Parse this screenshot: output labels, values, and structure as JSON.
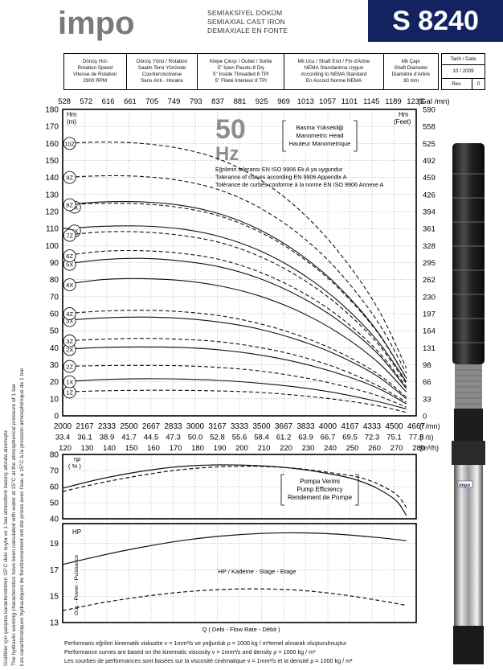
{
  "header": {
    "brand": "impo",
    "subtitle_lines": [
      "SEMİAKSİYEL DÖKÜM",
      "SEMIAXIAL CAST IRON",
      "DEMIAXIALE EN FONTE"
    ],
    "model": "S 8240",
    "brand_color": "#13235f"
  },
  "spec_table": [
    {
      "lines": [
        "Dönüş Hızı",
        "Rotation Speed",
        "Vitesse de Rotation",
        "2900 RPM"
      ]
    },
    {
      "lines": [
        "Dönüş Yönü / Rotation",
        "Saatin Tersi Yönünde",
        "Counterclockwise",
        "Sens Anti - Horaire"
      ]
    },
    {
      "lines": [
        "Klepe Çıkışı / Outlet / Sortie",
        "5\" İçten Pasolu   8 Diş",
        "5\" Inside Threaded   8 TPI",
        "5\" Fileté Interieur   8 TPI"
      ]
    },
    {
      "lines": [
        "Mil Ucu / Shaft End / Fin d'Arbre",
        "NEMA Standardına Uygun",
        "According to NEMA Standard",
        "En Accord Norme NEMA"
      ]
    },
    {
      "lines": [
        "Mil Çapı",
        "Shaft Diameter",
        "Diamètre d'Arbre",
        "30 mm"
      ]
    }
  ],
  "date_box": {
    "label": "Tarih / Date",
    "date": "10 / 2009",
    "rev_label": "Rev.",
    "rev": "0"
  },
  "side_notes": [
    "Grafikler için çalışma karakteristikleri 15°C deki suyla ve 1 bar atmosferik basınç altında alınmıştır",
    "The hydraulic working characteristics have been calculated with water at 15°C at the atmospherical pressure of 1 bar",
    "Les caractéristiques hydrauliques de fonctionnement ont été prises avec l'eau a 15°C à la pression atmosphérique de 1 bar"
  ],
  "footer": [
    "Performans eğrileri kinematik viskozite ν = 1mm²/s ve yoğunluk ρ = 1000 kg / m³temel alınarak oluşturulmuştur",
    "Performance curves are based on the kinematic viscosity ν = 1mm²/s and density ρ = 1000 kg / m³",
    "Les courbes de performances sont basées sur la viscosité cinématique ν = 1mm²/s et la densité ρ = 1000 kg / m³"
  ],
  "chart_data": [
    {
      "type": "line",
      "id": "head",
      "big_label": "50",
      "big_label_unit": "Hz",
      "title_lines": [
        "Basma Yüksekliği",
        "Manometric Head",
        "Hauteur Manometrique"
      ],
      "tolerance_lines": [
        "Eğrilerin toleransı EN ISO 9906 Ek A ya uygundur",
        "Tolerance of curves according EN 9906 Appendix A",
        "Tolérance de curbes conforme à la norme EN ISO 9906 Annexe A"
      ],
      "ylabel_left": [
        "Hm",
        "(m)"
      ],
      "ylabel_right": [
        "Hm",
        "(Feet)"
      ],
      "y_ticks": [
        0,
        10,
        20,
        30,
        40,
        50,
        60,
        70,
        80,
        90,
        100,
        110,
        120,
        130,
        140,
        150,
        160,
        170,
        180
      ],
      "y_right_ticks": [
        "0",
        "33",
        "66",
        "98",
        "131",
        "164",
        "197",
        "230",
        "262",
        "295",
        "328",
        "361",
        "394",
        "426",
        "459",
        "492",
        "525",
        "558",
        "590"
      ],
      "x_top_ticks": [
        "528",
        "572",
        "616",
        "661",
        "705",
        "749",
        "793",
        "837",
        "881",
        "925",
        "969",
        "1013",
        "1057",
        "1101",
        "1145",
        "1189",
        "1233"
      ],
      "x_top_unit": "(Gal /mn)",
      "xlim": [
        120,
        300
      ],
      "ylim": [
        0,
        180
      ],
      "x": [
        120,
        140,
        160,
        180,
        200,
        220,
        240,
        260,
        280,
        295
      ],
      "series": [
        {
          "name": "1Z",
          "style": "dashed",
          "values": [
            14,
            14.7,
            15,
            15,
            14.6,
            13.8,
            12,
            9.5,
            6,
            2
          ]
        },
        {
          "name": "1X",
          "style": "solid",
          "values": [
            20,
            21.3,
            21.8,
            21.6,
            20.8,
            19.2,
            16.8,
            13.3,
            8.5,
            4
          ]
        },
        {
          "name": "2Z",
          "style": "dashed",
          "values": [
            29,
            29.5,
            29.6,
            29.4,
            28.4,
            26.4,
            23,
            18.3,
            12,
            5
          ]
        },
        {
          "name": "2X",
          "style": "solid",
          "values": [
            39,
            40.2,
            40.5,
            40.2,
            38.7,
            35.8,
            31.3,
            25,
            16.5,
            7
          ]
        },
        {
          "name": "3Z",
          "style": "dashed",
          "values": [
            44,
            45,
            45.5,
            45,
            43.5,
            40.2,
            35.2,
            28,
            18,
            8
          ]
        },
        {
          "name": "3X",
          "style": "solid",
          "values": [
            56,
            57.5,
            58,
            57.3,
            55,
            51,
            44.5,
            35.6,
            23.5,
            10
          ]
        },
        {
          "name": "4Z",
          "style": "dashed",
          "values": [
            60,
            61.5,
            62,
            61.2,
            58.8,
            54.2,
            47.3,
            37.8,
            25,
            11
          ]
        },
        {
          "name": "4X",
          "style": "solid",
          "values": [
            77,
            80,
            80.6,
            79.5,
            76.3,
            70.5,
            61.5,
            49,
            32,
            14
          ]
        },
        {
          "name": "5X",
          "style": "solid",
          "values": [
            89,
            91.7,
            92.5,
            91,
            87.5,
            80.8,
            70.5,
            56.3,
            37,
            16
          ]
        },
        {
          "name": "6Z",
          "style": "dashed",
          "values": [
            94,
            96.6,
            97,
            95.5,
            91.8,
            84.6,
            73.8,
            59,
            38.5,
            17
          ]
        },
        {
          "name": "6X",
          "style": "solid",
          "values": [
            110,
            111.3,
            111.5,
            109.8,
            105.3,
            97.2,
            84.8,
            67.7,
            44.5,
            20
          ]
        },
        {
          "name": "7Z",
          "style": "dashed",
          "values": [
            106,
            108,
            108,
            106,
            101.8,
            93.8,
            81.8,
            65.3,
            43,
            19
          ]
        },
        {
          "name": "7X",
          "style": "solid",
          "values": [
            124,
            125.6,
            125.7,
            123.7,
            118.6,
            109.5,
            95.6,
            76.5,
            50,
            22
          ]
        },
        {
          "name": "8Z",
          "style": "dashed",
          "values": [
            124,
            124.8,
            124.5,
            122.3,
            117.3,
            108.2,
            94.5,
            75.5,
            49.5,
            22
          ]
        },
        {
          "name": "9Z",
          "style": "dashed",
          "values": [
            140,
            141,
            140.6,
            138.2,
            132.6,
            122.4,
            107,
            85.5,
            56,
            25
          ]
        },
        {
          "name": "10Z",
          "style": "dashed",
          "values": [
            160,
            160.8,
            160,
            157,
            150.6,
            139,
            121.5,
            97,
            64,
            28
          ]
        }
      ],
      "x_axis_rows": [
        {
          "unit": "(l /mn)",
          "ticks": [
            "2000",
            "2167",
            "2333",
            "2500",
            "2667",
            "2833",
            "3000",
            "3167",
            "3333",
            "3500",
            "3667",
            "3833",
            "4000",
            "4167",
            "4333",
            "4500",
            "4667"
          ]
        },
        {
          "unit": "(l /s)",
          "ticks": [
            "33.4",
            "36.1",
            "38.9",
            "41.7",
            "44.5",
            "47.3",
            "50.0",
            "52.8",
            "55.6",
            "58.4",
            "61.2",
            "63.9",
            "66.7",
            "69.5",
            "72.3",
            "75.1",
            "77.8"
          ]
        },
        {
          "unit": "(m³/h)",
          "ticks": [
            "120",
            "130",
            "140",
            "150",
            "160",
            "170",
            "180",
            "190",
            "200",
            "210",
            "220",
            "230",
            "240",
            "250",
            "260",
            "270",
            "280"
          ]
        }
      ]
    },
    {
      "type": "line",
      "id": "efficiency",
      "ylabel": [
        "ηp",
        "( % )"
      ],
      "title_lines": [
        "Pompa Verimi",
        "Pump Efficiency",
        "Rendement de Pompe"
      ],
      "y_ticks": [
        40,
        50,
        60,
        70,
        80
      ],
      "ylim": [
        40,
        80
      ],
      "xlim": [
        120,
        300
      ],
      "x": [
        120,
        140,
        160,
        180,
        200,
        220,
        240,
        260,
        270,
        280,
        290,
        295
      ],
      "series": [
        {
          "name": "X",
          "style": "solid",
          "values": [
            59,
            65,
            69.5,
            72.5,
            73.5,
            73,
            71,
            67,
            64,
            59,
            51,
            42
          ]
        },
        {
          "name": "Z",
          "style": "dashed",
          "values": [
            57,
            62.5,
            67,
            70.5,
            72.3,
            72.6,
            71.2,
            68,
            66,
            62,
            55,
            47
          ]
        }
      ]
    },
    {
      "type": "line",
      "id": "power",
      "ylabel": [
        "HP"
      ],
      "side_label": "Güç - Power - Puissance",
      "title": "HP / Kademe - Stage - Etage",
      "xlabel": "Q    ( Debi - Flow Rate - Débit )",
      "y_ticks": [
        13,
        15,
        17,
        19
      ],
      "ylim": [
        13,
        20.5
      ],
      "xlim": [
        120,
        300
      ],
      "x": [
        120,
        140,
        160,
        180,
        200,
        220,
        240,
        260,
        280,
        295
      ],
      "series": [
        {
          "name": "X",
          "style": "solid",
          "values": [
            17.4,
            18.1,
            18.7,
            19.2,
            19.55,
            19.75,
            19.8,
            19.7,
            19.45,
            19.2
          ]
        },
        {
          "name": "Z",
          "style": "dashed",
          "values": [
            13.9,
            14.5,
            14.95,
            15.3,
            15.5,
            15.55,
            15.45,
            15.15,
            14.7,
            14.3
          ]
        }
      ]
    }
  ]
}
